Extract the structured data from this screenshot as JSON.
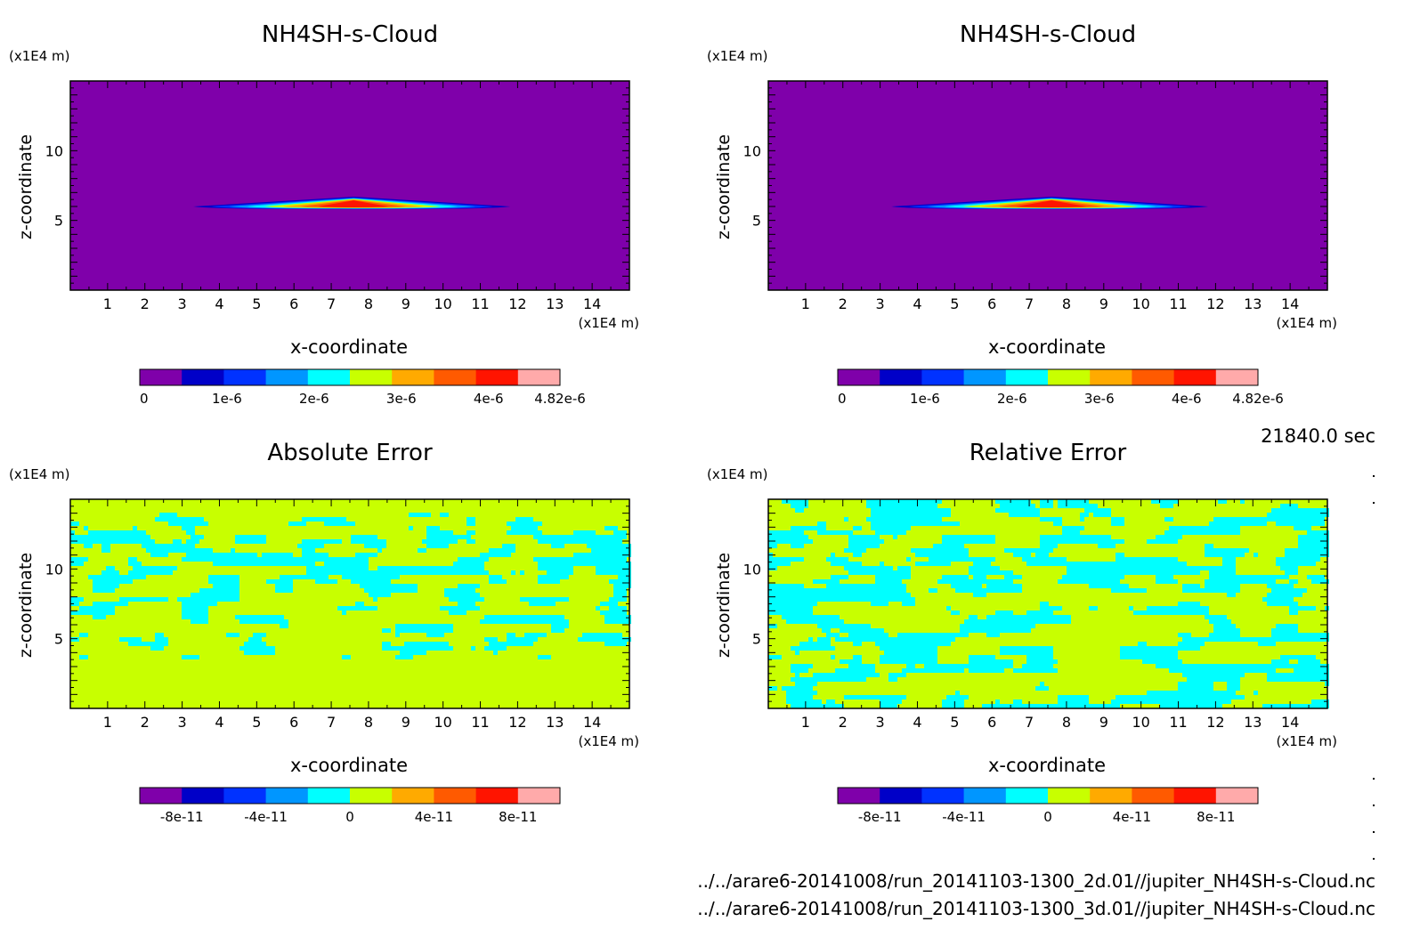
{
  "footer": {
    "time": "21840.0 sec",
    "file_2d": "../../arare6-20141008/run_20141103-1300_2d.01//jupiter_NH4SH-s-Cloud.nc",
    "file_3d": "../../arare6-20141008/run_20141103-1300_3d.01//jupiter_NH4SH-s-Cloud.nc"
  },
  "colorbar_colors": [
    "#7f00aa",
    "#0000c8",
    "#0032ff",
    "#0096ff",
    "#00ffff",
    "#c8ff00",
    "#ffaa00",
    "#ff5a00",
    "#ff1400",
    "#ffaaaa"
  ],
  "chart_data": [
    {
      "type": "heatmap",
      "title": "NH4SH-s-Cloud",
      "xlabel": "x-coordinate",
      "ylabel": "z-coordinate",
      "x_unit": "(x1E4 m)",
      "y_unit": "(x1E4 m)",
      "xlim": [
        0,
        15
      ],
      "ylim": [
        0,
        15
      ],
      "x_ticks": [
        "1",
        "2",
        "3",
        "4",
        "5",
        "6",
        "7",
        "8",
        "9",
        "10",
        "11",
        "12",
        "13",
        "14"
      ],
      "y_ticks": [
        "5",
        "10"
      ],
      "colorbar_labels": [
        "0",
        "1e-6",
        "2e-6",
        "3e-6",
        "4e-6",
        "4.82e-6"
      ],
      "field": "cloud",
      "cloud_layer": {
        "x_range": [
          3.3,
          11.8
        ],
        "z_base": 6.0,
        "z_peak": 6.7,
        "peak_x": 7.6,
        "max_value": 4.82e-06
      }
    },
    {
      "type": "heatmap",
      "title": "NH4SH-s-Cloud",
      "xlabel": "x-coordinate",
      "ylabel": "z-coordinate",
      "x_unit": "(x1E4 m)",
      "y_unit": "(x1E4 m)",
      "xlim": [
        0,
        15
      ],
      "ylim": [
        0,
        15
      ],
      "x_ticks": [
        "1",
        "2",
        "3",
        "4",
        "5",
        "6",
        "7",
        "8",
        "9",
        "10",
        "11",
        "12",
        "13",
        "14"
      ],
      "y_ticks": [
        "5",
        "10"
      ],
      "colorbar_labels": [
        "0",
        "1e-6",
        "2e-6",
        "3e-6",
        "4e-6",
        "4.82e-6"
      ],
      "field": "cloud",
      "cloud_layer": {
        "x_range": [
          3.3,
          11.8
        ],
        "z_base": 6.0,
        "z_peak": 6.7,
        "peak_x": 7.6,
        "max_value": 4.82e-06
      }
    },
    {
      "type": "heatmap",
      "title": "Absolute Error",
      "xlabel": "x-coordinate",
      "ylabel": "z-coordinate",
      "x_unit": "(x1E4 m)",
      "y_unit": "(x1E4 m)",
      "xlim": [
        0,
        15
      ],
      "ylim": [
        0,
        15
      ],
      "x_ticks": [
        "1",
        "2",
        "3",
        "4",
        "5",
        "6",
        "7",
        "8",
        "9",
        "10",
        "11",
        "12",
        "13",
        "14"
      ],
      "y_ticks": [
        "5",
        "10"
      ],
      "colorbar_labels": [
        "-8e-11",
        "-4e-11",
        "0",
        "4e-11",
        "8e-11"
      ],
      "field": "noise",
      "noise_z_range": [
        3.5,
        14.0
      ],
      "background": "yellow-green",
      "blobs": "cyan"
    },
    {
      "type": "heatmap",
      "title": "Relative Error",
      "xlabel": "x-coordinate",
      "ylabel": "z-coordinate",
      "x_unit": "(x1E4 m)",
      "y_unit": "(x1E4 m)",
      "xlim": [
        0,
        15
      ],
      "ylim": [
        0,
        15
      ],
      "x_ticks": [
        "1",
        "2",
        "3",
        "4",
        "5",
        "6",
        "7",
        "8",
        "9",
        "10",
        "11",
        "12",
        "13",
        "14"
      ],
      "y_ticks": [
        "5",
        "10"
      ],
      "colorbar_labels": [
        "-8e-11",
        "-4e-11",
        "0",
        "4e-11",
        "8e-11"
      ],
      "field": "noise",
      "noise_z_range": [
        0.0,
        15.0
      ],
      "background": "yellow-green",
      "blobs": "cyan"
    }
  ]
}
